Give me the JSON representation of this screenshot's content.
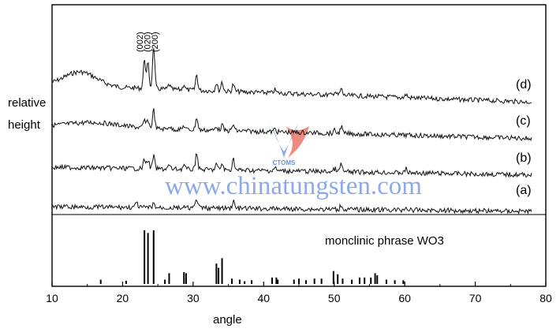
{
  "chart_data": {
    "type": "line",
    "xlabel": "angle",
    "ylabel_lines": [
      "relative",
      "height"
    ],
    "xlim": [
      10,
      80
    ],
    "xticks": [
      "10",
      "20",
      "30",
      "40",
      "50",
      "60",
      "70",
      "80"
    ],
    "series": [
      {
        "name": "(d)",
        "peaks_2theta": [
          23.1,
          23.6,
          24.4,
          26.6,
          28.7,
          30.5,
          33.3,
          34.1,
          35.7,
          41.6,
          50.1,
          51.0,
          60.2
        ],
        "broad_hump_center": 14
      },
      {
        "name": "(c)",
        "peaks_2theta": [
          23.1,
          23.6,
          24.4,
          26.6,
          28.7,
          30.5,
          33.3,
          34.1,
          35.7,
          41.6,
          50.1,
          51.0
        ]
      },
      {
        "name": "(b)",
        "peaks_2theta": [
          23.1,
          23.6,
          24.4,
          26.6,
          28.7,
          30.5,
          33.3,
          34.1,
          35.7,
          41.6,
          50.1,
          51.0,
          60.2
        ]
      },
      {
        "name": "(a)",
        "peaks_2theta": [
          22.0,
          24.4,
          30.5,
          35.7,
          51.0,
          60.2
        ]
      }
    ],
    "peak_labels": [
      {
        "text": "(002)",
        "x": 23.1
      },
      {
        "text": "(020)",
        "x": 23.6
      },
      {
        "text": "(200)",
        "x": 24.4
      }
    ],
    "reference": {
      "label": "monclinic phrase WO3",
      "sticks": [
        {
          "x": 16.9,
          "h": 0.08
        },
        {
          "x": 20.5,
          "h": 0.06
        },
        {
          "x": 23.1,
          "h": 1.0
        },
        {
          "x": 23.6,
          "h": 0.95
        },
        {
          "x": 24.4,
          "h": 1.0
        },
        {
          "x": 26.0,
          "h": 0.08
        },
        {
          "x": 26.6,
          "h": 0.2
        },
        {
          "x": 28.7,
          "h": 0.22
        },
        {
          "x": 29.0,
          "h": 0.2
        },
        {
          "x": 33.3,
          "h": 0.38
        },
        {
          "x": 33.6,
          "h": 0.3
        },
        {
          "x": 34.1,
          "h": 0.48
        },
        {
          "x": 35.5,
          "h": 0.1
        },
        {
          "x": 36.6,
          "h": 0.08
        },
        {
          "x": 37.3,
          "h": 0.05
        },
        {
          "x": 38.3,
          "h": 0.07
        },
        {
          "x": 41.2,
          "h": 0.12
        },
        {
          "x": 41.8,
          "h": 0.12
        },
        {
          "x": 42.0,
          "h": 0.08
        },
        {
          "x": 44.3,
          "h": 0.08
        },
        {
          "x": 45.0,
          "h": 0.1
        },
        {
          "x": 46.0,
          "h": 0.07
        },
        {
          "x": 47.2,
          "h": 0.1
        },
        {
          "x": 48.2,
          "h": 0.1
        },
        {
          "x": 49.9,
          "h": 0.24
        },
        {
          "x": 50.5,
          "h": 0.18
        },
        {
          "x": 51.2,
          "h": 0.1
        },
        {
          "x": 52.5,
          "h": 0.08
        },
        {
          "x": 53.6,
          "h": 0.12
        },
        {
          "x": 54.3,
          "h": 0.12
        },
        {
          "x": 55.2,
          "h": 0.12
        },
        {
          "x": 55.8,
          "h": 0.2
        },
        {
          "x": 56.1,
          "h": 0.16
        },
        {
          "x": 57.4,
          "h": 0.08
        },
        {
          "x": 58.6,
          "h": 0.07
        },
        {
          "x": 59.8,
          "h": 0.07
        }
      ]
    }
  },
  "labels": {
    "ylabel_line1": "relative",
    "ylabel_line2": "height",
    "xlabel": "angle",
    "reference_label": "monclinic phrase WO3"
  },
  "watermark": {
    "url": "www.chinatungsten.com",
    "logo_text": "CTOMS"
  }
}
